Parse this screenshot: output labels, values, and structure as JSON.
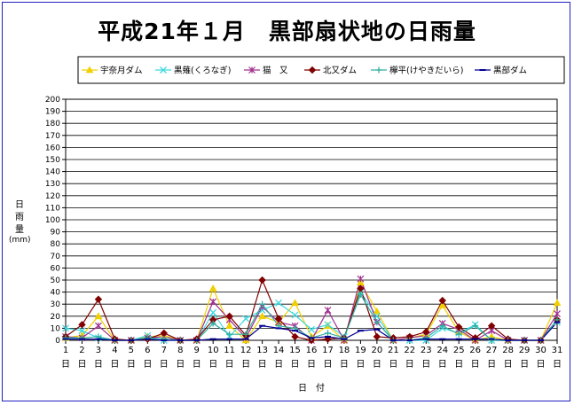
{
  "chart_data": {
    "type": "line",
    "title": "平成21年１月　黒部扇状地の日雨量",
    "ylabel_chars": [
      "日",
      "雨",
      "量"
    ],
    "ylabel_unit": "(mm)",
    "xlabel": "日　付",
    "x_day_suffix": "日",
    "ylim": [
      0,
      200
    ],
    "ytick_step": 10,
    "grid": true,
    "legend_position": "top",
    "x": [
      1,
      2,
      3,
      4,
      5,
      6,
      7,
      8,
      9,
      10,
      11,
      12,
      13,
      14,
      15,
      16,
      17,
      18,
      19,
      20,
      21,
      22,
      23,
      24,
      25,
      26,
      27,
      28,
      29,
      30,
      31
    ],
    "series": [
      {
        "name": "宇奈月ダム",
        "color": "#f0d000",
        "marker": "triangle",
        "values": [
          2,
          4,
          20,
          0,
          0,
          3,
          4,
          0,
          0,
          43,
          12,
          0,
          20,
          15,
          31,
          3,
          12,
          0,
          48,
          24,
          0,
          2,
          5,
          29,
          7,
          0,
          3,
          0,
          0,
          0,
          31
        ]
      },
      {
        "name": "黒薙(くろなぎ)",
        "color": "#40d8e0",
        "marker": "x",
        "values": [
          10,
          8,
          2,
          0,
          0,
          4,
          0,
          0,
          0,
          23,
          3,
          18,
          25,
          31,
          21,
          9,
          13,
          3,
          40,
          20,
          0,
          0,
          0,
          10,
          6,
          13,
          0,
          0,
          0,
          0,
          15
        ]
      },
      {
        "name": "猫　又",
        "color": "#a03090",
        "marker": "star",
        "values": [
          3,
          2,
          12,
          0,
          0,
          2,
          3,
          0,
          0,
          32,
          17,
          2,
          28,
          15,
          12,
          0,
          25,
          0,
          51,
          15,
          0,
          2,
          4,
          14,
          9,
          0,
          8,
          0,
          0,
          0,
          22
        ]
      },
      {
        "name": "北又ダム",
        "color": "#800000",
        "marker": "diamond",
        "values": [
          3,
          13,
          34,
          1,
          0,
          1,
          6,
          0,
          1,
          17,
          20,
          4,
          50,
          18,
          3,
          0,
          1,
          2,
          43,
          3,
          2,
          3,
          7,
          33,
          11,
          2,
          12,
          1,
          0,
          0,
          17
        ]
      },
      {
        "name": "欅平(けやきだいら)",
        "color": "#30b0a0",
        "marker": "plus",
        "values": [
          2,
          2,
          3,
          0,
          0,
          2,
          1,
          0,
          0,
          14,
          5,
          5,
          30,
          12,
          10,
          2,
          6,
          2,
          38,
          15,
          0,
          0,
          2,
          12,
          5,
          12,
          0,
          0,
          0,
          0,
          17
        ]
      },
      {
        "name": "黒部ダム",
        "color": "#000090",
        "marker": "dash",
        "values": [
          1,
          1,
          1,
          0,
          0,
          1,
          0,
          0,
          0,
          1,
          1,
          1,
          12,
          10,
          8,
          2,
          3,
          1,
          8,
          9,
          0,
          0,
          1,
          1,
          1,
          1,
          1,
          0,
          0,
          0,
          15
        ]
      }
    ]
  }
}
